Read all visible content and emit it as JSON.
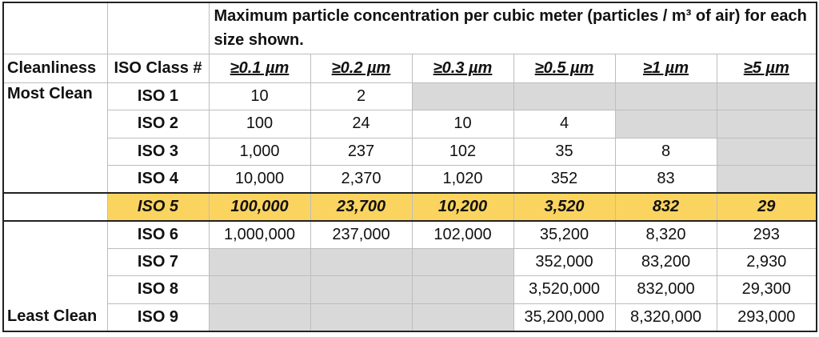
{
  "table": {
    "title": "Maximum particle concentration per cubic meter (particles / m³ of air) for each size shown.",
    "headers": {
      "cleanliness": "Cleanliness",
      "iso_class": "ISO Class #",
      "sizes": [
        "≥0.1 µm",
        "≥0.2 µm",
        "≥0.3 µm",
        "≥0.5 µm",
        "≥1 µm",
        "≥5 µm"
      ]
    },
    "cleanliness_labels": {
      "most": "Most Clean",
      "least": "Least Clean"
    },
    "highlight_row": "ISO 5",
    "highlight_color": "#fbd460",
    "unavailable_color": "#d9d9d9",
    "rows": [
      {
        "class": "ISO 1",
        "values": [
          "10",
          "2",
          null,
          null,
          null,
          null
        ]
      },
      {
        "class": "ISO 2",
        "values": [
          "100",
          "24",
          "10",
          "4",
          null,
          null
        ]
      },
      {
        "class": "ISO 3",
        "values": [
          "1,000",
          "237",
          "102",
          "35",
          "8",
          null
        ]
      },
      {
        "class": "ISO 4",
        "values": [
          "10,000",
          "2,370",
          "1,020",
          "352",
          "83",
          null
        ]
      },
      {
        "class": "ISO 5",
        "values": [
          "100,000",
          "23,700",
          "10,200",
          "3,520",
          "832",
          "29"
        ]
      },
      {
        "class": "ISO 6",
        "values": [
          "1,000,000",
          "237,000",
          "102,000",
          "35,200",
          "8,320",
          "293"
        ]
      },
      {
        "class": "ISO 7",
        "values": [
          null,
          null,
          null,
          "352,000",
          "83,200",
          "2,930"
        ]
      },
      {
        "class": "ISO 8",
        "values": [
          null,
          null,
          null,
          "3,520,000",
          "832,000",
          "29,300"
        ]
      },
      {
        "class": "ISO 9",
        "values": [
          null,
          null,
          null,
          "35,200,000",
          "8,320,000",
          "293,000"
        ]
      }
    ]
  }
}
